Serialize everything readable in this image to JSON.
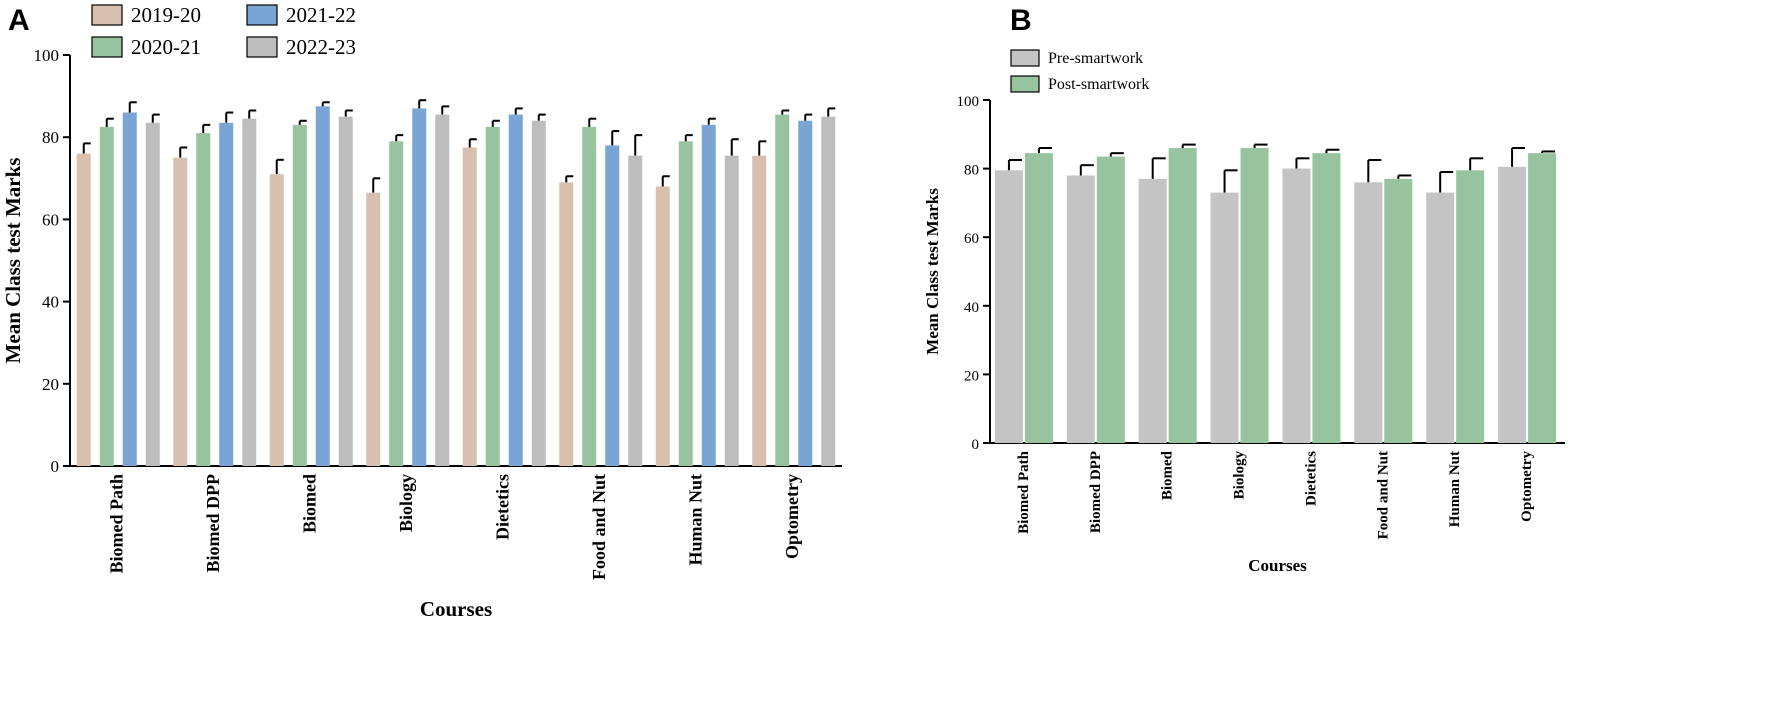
{
  "chart_data": [
    {
      "panel": "A",
      "type": "bar",
      "title": "",
      "xlabel": "Courses",
      "ylabel": "Mean Class test Marks",
      "ylim": [
        0,
        100
      ],
      "yticks": [
        0,
        20,
        40,
        60,
        80,
        100
      ],
      "legend_position": "top",
      "categories": [
        "Biomed Path",
        "Biomed DPP",
        "Biomed",
        "Biology",
        "Dietetics",
        "Food and Nut",
        "Human Nut",
        "Optometry"
      ],
      "series": [
        {
          "name": "2019-20",
          "color": "#d7c0ae",
          "values": [
            76,
            75,
            71,
            66.5,
            77.5,
            69,
            68,
            75.5
          ],
          "errors": [
            2.5,
            2.5,
            3.5,
            3.5,
            2,
            1.5,
            2.5,
            3.5
          ]
        },
        {
          "name": "2020-21",
          "color": "#97c49e",
          "values": [
            82.5,
            81,
            83,
            79,
            82.5,
            82.5,
            79,
            85.5
          ],
          "errors": [
            2,
            2,
            1,
            1.5,
            1.5,
            2,
            1.5,
            1
          ]
        },
        {
          "name": "2021-22",
          "color": "#79a4d3",
          "values": [
            86,
            83.5,
            87.5,
            87,
            85.5,
            78,
            83,
            84
          ],
          "errors": [
            2.5,
            2.5,
            1,
            2,
            1.5,
            3.5,
            1.5,
            1.5
          ]
        },
        {
          "name": "2022-23",
          "color": "#bdbdbd",
          "values": [
            83.5,
            84.5,
            85,
            85.5,
            84,
            75.5,
            75.5,
            85
          ],
          "errors": [
            2,
            2,
            1.5,
            2,
            1.5,
            5,
            4,
            2
          ]
        }
      ]
    },
    {
      "panel": "B",
      "type": "bar",
      "title": "",
      "xlabel": "Courses",
      "ylabel": "Mean Class test Marks",
      "ylim": [
        0,
        100
      ],
      "yticks": [
        0,
        20,
        40,
        60,
        80,
        100
      ],
      "legend_position": "top-left",
      "categories": [
        "Biomed Path",
        "Biomed DPP",
        "Biomed",
        "Biology",
        "Dietetics",
        "Food and Nut",
        "Human Nut",
        "Optometry"
      ],
      "series": [
        {
          "name": "Pre-smartwork",
          "color": "#c4c4c4",
          "values": [
            79.5,
            78,
            77,
            73,
            80,
            76,
            73,
            80.5
          ],
          "errors": [
            3,
            3,
            6,
            6.5,
            3,
            6.5,
            6,
            5.5
          ]
        },
        {
          "name": "Post-smartwork",
          "color": "#97c49e",
          "values": [
            84.5,
            83.5,
            86,
            86,
            84.5,
            77,
            79.5,
            84.5
          ],
          "errors": [
            1.5,
            1,
            1,
            1,
            1,
            1,
            3.5,
            0.5
          ]
        }
      ]
    }
  ]
}
